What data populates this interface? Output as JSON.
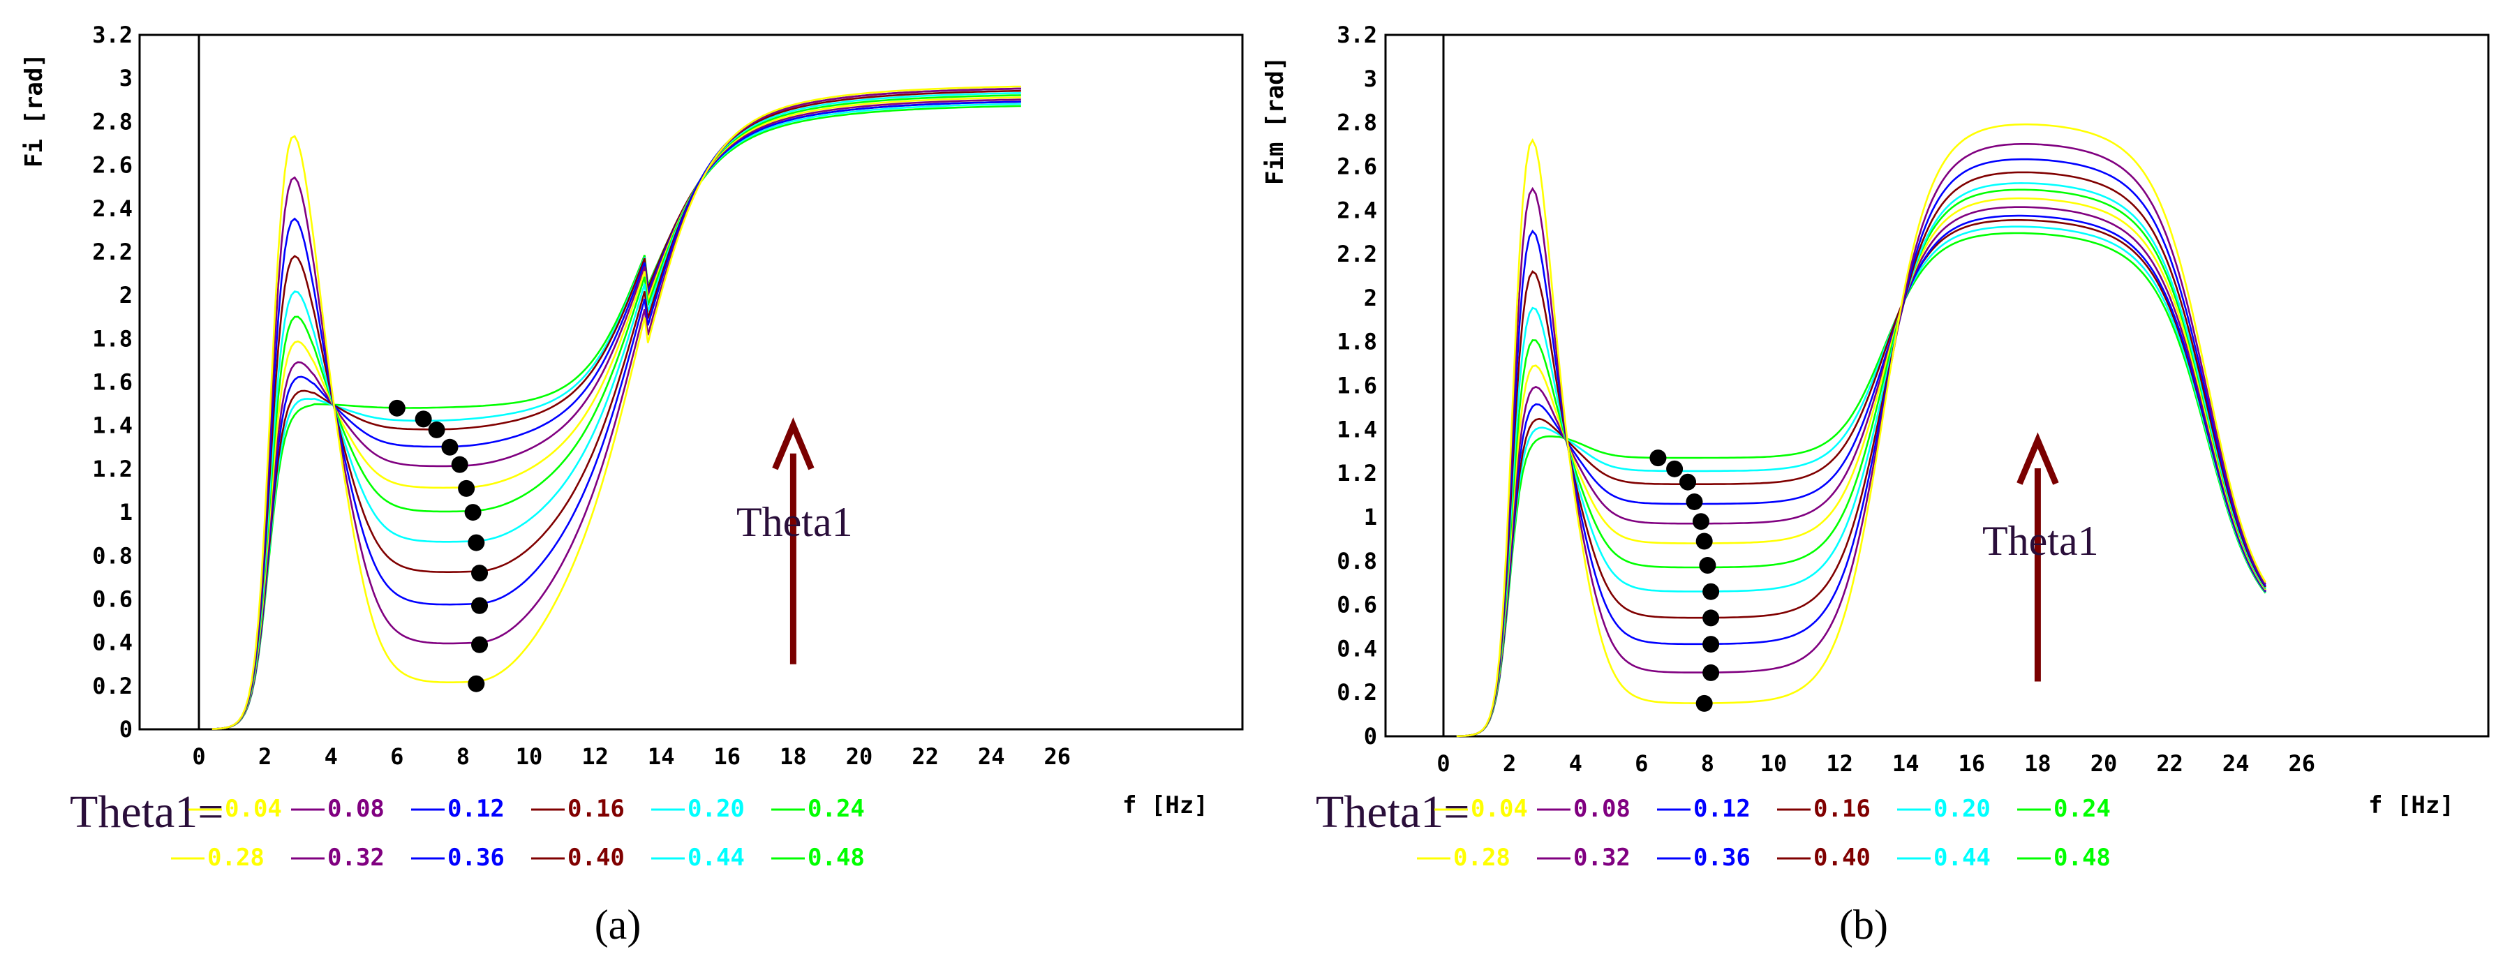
{
  "charts": [
    {
      "panel_label": "(a)",
      "ylabel": "Fi [rad]",
      "xlabel": "f [Hz]",
      "annotation": "Theta1",
      "legend_title": "Theta1=",
      "legend_values": [
        "0.04",
        "0.08",
        "0.12",
        "0.16",
        "0.20",
        "0.24",
        "0.28",
        "0.32",
        "0.36",
        "0.40",
        "0.44",
        "0.48"
      ]
    },
    {
      "panel_label": "(b)",
      "ylabel": "Fim [rad]",
      "xlabel": "f [Hz]",
      "annotation": "Theta1",
      "legend_title": "Theta1=",
      "legend_values": [
        "0.04",
        "0.08",
        "0.12",
        "0.16",
        "0.20",
        "0.24",
        "0.28",
        "0.32",
        "0.36",
        "0.40",
        "0.44",
        "0.48"
      ]
    }
  ],
  "colors": {
    "series": [
      "#ffff00",
      "#800080",
      "#0000ff",
      "#800000",
      "#00ffff",
      "#00ff00",
      "#ffff00",
      "#800080",
      "#0000ff",
      "#800000",
      "#00ffff",
      "#00ff00"
    ],
    "arrow": "#7a0000",
    "marker": "#000000",
    "axis": "#000000"
  },
  "chart_data": [
    {
      "type": "line",
      "title": "",
      "xlabel": "f [Hz]",
      "ylabel": "Fi [rad]",
      "xlim": [
        -3,
        28
      ],
      "ylim": [
        0,
        3.2
      ],
      "xticks": [
        0,
        2,
        4,
        6,
        8,
        10,
        12,
        14,
        16,
        18,
        20,
        22,
        24,
        26
      ],
      "yticks": [
        0,
        0.2,
        0.4,
        0.6,
        0.8,
        1,
        1.2,
        1.4,
        1.6,
        1.8,
        2,
        2.2,
        2.4,
        2.6,
        2.8,
        3,
        3.2
      ],
      "series_theta1": [
        0.48,
        0.44,
        0.4,
        0.36,
        0.32,
        0.28,
        0.24,
        0.2,
        0.16,
        0.12,
        0.08,
        0.04
      ],
      "series": [
        {
          "name": "0.48",
          "peak": 1.5,
          "min": 1.48,
          "end": 2.88,
          "min_x": 6.0
        },
        {
          "name": "0.44",
          "peak": 1.55,
          "min": 1.42,
          "end": 2.89,
          "min_x": 6.8
        },
        {
          "name": "0.40",
          "peak": 1.6,
          "min": 1.38,
          "end": 2.9,
          "min_x": 7.2
        },
        {
          "name": "0.36",
          "peak": 1.68,
          "min": 1.3,
          "end": 2.9,
          "min_x": 7.6
        },
        {
          "name": "0.32",
          "peak": 1.76,
          "min": 1.21,
          "end": 2.91,
          "min_x": 7.9
        },
        {
          "name": "0.28",
          "peak": 1.87,
          "min": 1.11,
          "end": 2.92,
          "min_x": 8.1
        },
        {
          "name": "0.24",
          "peak": 2.0,
          "min": 1.0,
          "end": 2.93,
          "min_x": 8.3
        },
        {
          "name": "0.20",
          "peak": 2.13,
          "min": 0.86,
          "end": 2.94,
          "min_x": 8.4
        },
        {
          "name": "0.16",
          "peak": 2.31,
          "min": 0.72,
          "end": 2.95,
          "min_x": 8.5
        },
        {
          "name": "0.12",
          "peak": 2.5,
          "min": 0.57,
          "end": 2.96,
          "min_x": 8.5
        },
        {
          "name": "0.08",
          "peak": 2.71,
          "min": 0.39,
          "end": 2.96,
          "min_x": 8.5
        },
        {
          "name": "0.04",
          "peak": 2.92,
          "min": 0.21,
          "end": 2.97,
          "min_x": 8.4
        }
      ],
      "minima_points": [
        [
          6.0,
          1.48
        ],
        [
          6.8,
          1.43
        ],
        [
          7.2,
          1.38
        ],
        [
          7.6,
          1.3
        ],
        [
          7.9,
          1.22
        ],
        [
          8.1,
          1.11
        ],
        [
          8.3,
          1.0
        ],
        [
          8.4,
          0.86
        ],
        [
          8.5,
          0.72
        ],
        [
          8.5,
          0.57
        ],
        [
          8.5,
          0.39
        ],
        [
          8.4,
          0.21
        ]
      ],
      "annotation": {
        "text": "Theta1",
        "arrow_x": 18,
        "arrow_y": [
          0.3,
          1.4
        ]
      }
    },
    {
      "type": "line",
      "title": "",
      "xlabel": "f [Hz]",
      "ylabel": "Fim [rad]",
      "xlim": [
        -3,
        28
      ],
      "ylim": [
        0,
        3.2
      ],
      "xticks": [
        0,
        2,
        4,
        6,
        8,
        10,
        12,
        14,
        16,
        18,
        20,
        22,
        24,
        26
      ],
      "yticks": [
        0,
        0.2,
        0.4,
        0.6,
        0.8,
        1,
        1.2,
        1.4,
        1.6,
        1.8,
        2,
        2.2,
        2.4,
        2.6,
        2.8,
        3,
        3.2
      ],
      "series_theta1": [
        0.48,
        0.44,
        0.4,
        0.36,
        0.32,
        0.28,
        0.24,
        0.2,
        0.16,
        0.12,
        0.08,
        0.04
      ],
      "series": [
        {
          "name": "0.48",
          "peak": 1.38,
          "min": 1.27,
          "hump": 2.3,
          "end": 0.5,
          "min_x": 6.5
        },
        {
          "name": "0.44",
          "peak": 1.44,
          "min": 1.21,
          "hump": 2.33,
          "end": 0.5,
          "min_x": 7.0
        },
        {
          "name": "0.40",
          "peak": 1.49,
          "min": 1.15,
          "hump": 2.36,
          "end": 0.5,
          "min_x": 7.4
        },
        {
          "name": "0.36",
          "peak": 1.57,
          "min": 1.06,
          "hump": 2.38,
          "end": 0.5,
          "min_x": 7.6
        },
        {
          "name": "0.32",
          "peak": 1.66,
          "min": 0.97,
          "hump": 2.42,
          "end": 0.5,
          "min_x": 7.8
        },
        {
          "name": "0.28",
          "peak": 1.77,
          "min": 0.88,
          "hump": 2.46,
          "end": 0.5,
          "min_x": 7.9
        },
        {
          "name": "0.24",
          "peak": 1.9,
          "min": 0.77,
          "hump": 2.5,
          "end": 0.5,
          "min_x": 8.0
        },
        {
          "name": "0.20",
          "peak": 2.06,
          "min": 0.66,
          "hump": 2.53,
          "end": 0.5,
          "min_x": 8.1
        },
        {
          "name": "0.16",
          "peak": 2.24,
          "min": 0.54,
          "hump": 2.58,
          "end": 0.5,
          "min_x": 8.1
        },
        {
          "name": "0.12",
          "peak": 2.44,
          "min": 0.42,
          "hump": 2.64,
          "end": 0.5,
          "min_x": 8.1
        },
        {
          "name": "0.08",
          "peak": 2.65,
          "min": 0.29,
          "hump": 2.71,
          "end": 0.5,
          "min_x": 8.1
        },
        {
          "name": "0.04",
          "peak": 2.89,
          "min": 0.15,
          "hump": 2.8,
          "end": 0.5,
          "min_x": 7.9
        }
      ],
      "minima_points": [
        [
          6.5,
          1.27
        ],
        [
          7.0,
          1.22
        ],
        [
          7.4,
          1.16
        ],
        [
          7.6,
          1.07
        ],
        [
          7.8,
          0.98
        ],
        [
          7.9,
          0.89
        ],
        [
          8.0,
          0.78
        ],
        [
          8.1,
          0.66
        ],
        [
          8.1,
          0.54
        ],
        [
          8.1,
          0.42
        ],
        [
          8.1,
          0.29
        ],
        [
          7.9,
          0.15
        ]
      ],
      "annotation": {
        "text": "Theta1",
        "arrow_x": 18,
        "arrow_y": [
          0.25,
          1.35
        ]
      }
    }
  ]
}
